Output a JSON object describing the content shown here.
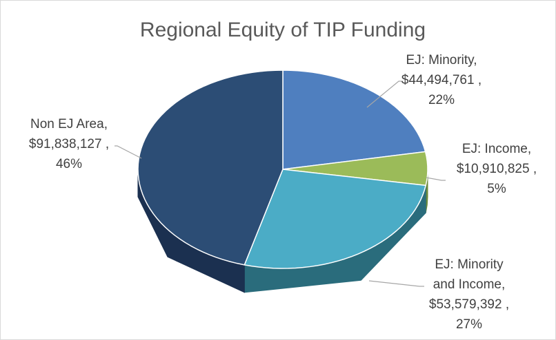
{
  "chart_data": {
    "type": "pie3d",
    "title": "Regional Equity of TIP Funding",
    "categories": [
      "EJ: Minority",
      "EJ: Income",
      "EJ: Minority and Income",
      "Non EJ Area"
    ],
    "separator": ",",
    "values": [
      44494761,
      10910825,
      53579392,
      91838127
    ],
    "value_labels": [
      "$44,494,761 ,",
      "$10,910,825 ,",
      "$53,579,392 ,",
      "$91,838,127 ,"
    ],
    "percent_labels": [
      "22%",
      "5%",
      "27%",
      "46%"
    ],
    "colors": [
      "#4f7fbf",
      "#9bbb59",
      "#4bacc6",
      "#2c4d75"
    ],
    "side_colors": [
      "#35598a",
      "#6c8a3b",
      "#2a6c7c",
      "#1b3050"
    ]
  }
}
